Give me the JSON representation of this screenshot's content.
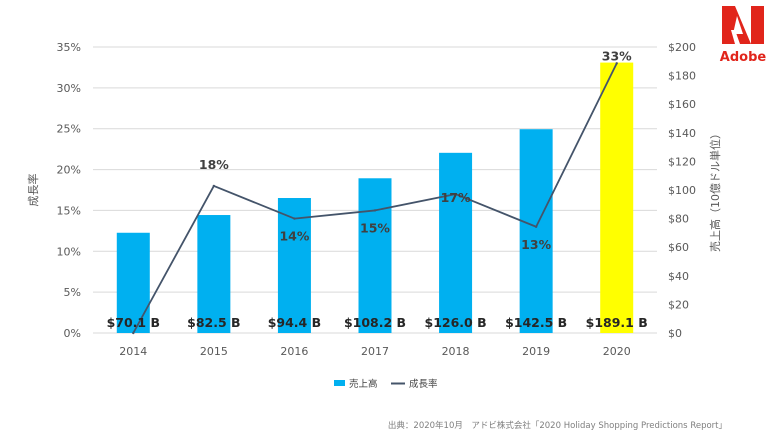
{
  "brand": {
    "name": "Adobe",
    "color": "#e1251b"
  },
  "source_note": "出典：2020年10月　アドビ株式会社「2020 Holiday Shopping Predictions Report」",
  "chart_data": {
    "type": "bar",
    "categories": [
      "2014",
      "2015",
      "2016",
      "2017",
      "2018",
      "2019",
      "2020"
    ],
    "series": [
      {
        "name": "売上高",
        "type": "bar",
        "axis": "right",
        "values": [
          70.1,
          82.5,
          94.4,
          108.2,
          126.0,
          142.5,
          189.1
        ],
        "labels": [
          "$70.1 B",
          "$82.5 B",
          "$94.4 B",
          "$108.2 B",
          "$126.0 B",
          "$142.5 B",
          "$189.1 B"
        ],
        "color": "#00b0f0",
        "highlight": {
          "index": 6,
          "color": "#ffff00"
        }
      },
      {
        "name": "成長率",
        "type": "line",
        "axis": "left",
        "values": [
          0,
          18,
          14,
          15,
          17,
          13,
          33
        ],
        "labels": [
          "",
          "18%",
          "14%",
          "15%",
          "17%",
          "13%",
          "33%"
        ],
        "color": "#44546a"
      }
    ],
    "left_axis": {
      "label": "成長率",
      "range": [
        0,
        35
      ],
      "ticks": [
        0,
        5,
        10,
        15,
        20,
        25,
        30,
        35
      ],
      "tick_labels": [
        "0%",
        "5%",
        "10%",
        "15%",
        "20%",
        "25%",
        "30%",
        "35%"
      ]
    },
    "right_axis": {
      "label": "売上高（10億ドル単位）",
      "range": [
        0,
        200
      ],
      "ticks": [
        0,
        20,
        40,
        60,
        80,
        100,
        120,
        140,
        160,
        180,
        200
      ],
      "tick_labels": [
        "$0",
        "$20",
        "$40",
        "$60",
        "$80",
        "$100",
        "$120",
        "$140",
        "$160",
        "$180",
        "$200"
      ]
    },
    "grid": true,
    "legend": {
      "position": "bottom",
      "items": [
        {
          "label": "売上高",
          "color": "#00b0f0",
          "shape": "square"
        },
        {
          "label": "成長率",
          "color": "#44546a",
          "shape": "line"
        }
      ]
    }
  }
}
